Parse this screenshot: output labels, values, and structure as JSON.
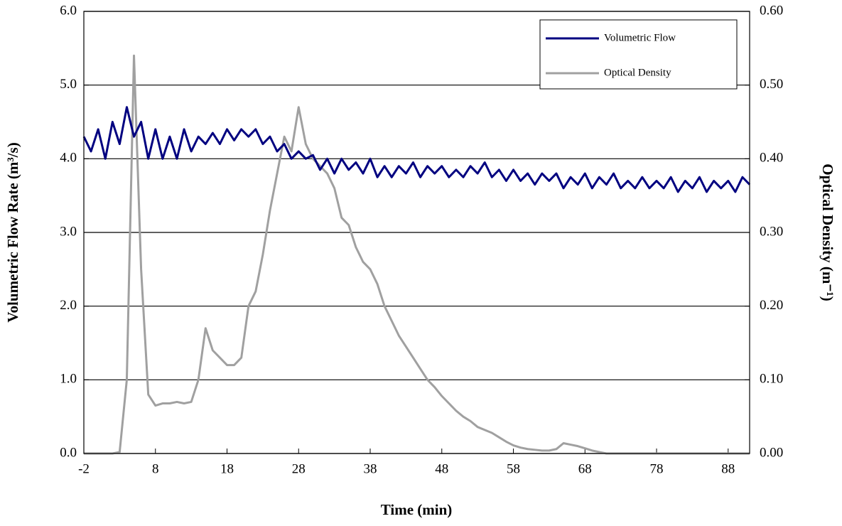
{
  "chart_data": {
    "type": "line",
    "x_label": "Time (min)",
    "y_label": "Volumetric Flow Rate (m³/s)",
    "y2_label": "Optical Density (m⁻¹)",
    "x": [
      -2,
      -1,
      0,
      1,
      2,
      3,
      4,
      5,
      6,
      7,
      8,
      9,
      10,
      11,
      12,
      13,
      14,
      15,
      16,
      17,
      18,
      19,
      20,
      21,
      22,
      23,
      24,
      25,
      26,
      27,
      28,
      29,
      30,
      31,
      32,
      33,
      34,
      35,
      36,
      37,
      38,
      39,
      40,
      41,
      42,
      43,
      44,
      45,
      46,
      47,
      48,
      49,
      50,
      51,
      52,
      53,
      54,
      55,
      56,
      57,
      58,
      59,
      60,
      61,
      62,
      63,
      64,
      65,
      66,
      67,
      68,
      69,
      70,
      71,
      72,
      73,
      74,
      75,
      76,
      77,
      78,
      79,
      80,
      81,
      82,
      83,
      84,
      85,
      86,
      87,
      88,
      89,
      90,
      91
    ],
    "series": [
      {
        "name": "Volumetric Flow",
        "color": "#000080",
        "axis": "y",
        "values": [
          4.3,
          4.1,
          4.4,
          4.0,
          4.5,
          4.2,
          4.7,
          4.3,
          4.5,
          4.0,
          4.4,
          4.0,
          4.3,
          4.0,
          4.4,
          4.1,
          4.3,
          4.2,
          4.35,
          4.2,
          4.4,
          4.25,
          4.4,
          4.3,
          4.4,
          4.2,
          4.3,
          4.1,
          4.2,
          4.0,
          4.1,
          4.0,
          4.05,
          3.85,
          4.0,
          3.8,
          4.0,
          3.85,
          3.95,
          3.8,
          4.0,
          3.75,
          3.9,
          3.75,
          3.9,
          3.8,
          3.95,
          3.75,
          3.9,
          3.8,
          3.9,
          3.75,
          3.85,
          3.75,
          3.9,
          3.8,
          3.95,
          3.75,
          3.85,
          3.7,
          3.85,
          3.7,
          3.8,
          3.65,
          3.8,
          3.7,
          3.8,
          3.6,
          3.75,
          3.65,
          3.8,
          3.6,
          3.75,
          3.65,
          3.8,
          3.6,
          3.7,
          3.6,
          3.75,
          3.6,
          3.7,
          3.6,
          3.75,
          3.55,
          3.7,
          3.6,
          3.75,
          3.55,
          3.7,
          3.6,
          3.7,
          3.55,
          3.75,
          3.65
        ]
      },
      {
        "name": "Optical Density",
        "color": "#a0a0a0",
        "axis": "y2",
        "values": [
          0,
          0,
          0,
          0,
          0,
          0.002,
          0.1,
          0.54,
          0.25,
          0.08,
          0.065,
          0.068,
          0.068,
          0.07,
          0.068,
          0.07,
          0.1,
          0.17,
          0.14,
          0.13,
          0.12,
          0.12,
          0.13,
          0.2,
          0.22,
          0.27,
          0.33,
          0.38,
          0.43,
          0.41,
          0.47,
          0.42,
          0.4,
          0.39,
          0.38,
          0.36,
          0.32,
          0.31,
          0.28,
          0.26,
          0.25,
          0.23,
          0.2,
          0.18,
          0.16,
          0.145,
          0.13,
          0.115,
          0.1,
          0.09,
          0.078,
          0.068,
          0.058,
          0.05,
          0.044,
          0.036,
          0.032,
          0.028,
          0.022,
          0.016,
          0.011,
          0.008,
          0.006,
          0.005,
          0.004,
          0.004,
          0.006,
          0.014,
          0.012,
          0.01,
          0.007,
          0.004,
          0.002,
          0,
          0,
          0,
          0,
          0,
          0,
          0,
          0,
          0,
          0,
          0,
          0,
          0,
          0,
          0,
          0,
          0,
          0,
          0,
          0,
          0
        ]
      }
    ],
    "xlim": [
      -2,
      91
    ],
    "xticks": [
      -2,
      8,
      18,
      28,
      38,
      48,
      58,
      68,
      78,
      88
    ],
    "ylim": [
      0,
      6
    ],
    "yticks": [
      {
        "value": 0,
        "label": "0.0"
      },
      {
        "value": 1,
        "label": "1.0"
      },
      {
        "value": 2,
        "label": "2.0"
      },
      {
        "value": 3,
        "label": "3.0"
      },
      {
        "value": 4,
        "label": "4.0"
      },
      {
        "value": 5,
        "label": "5.0"
      },
      {
        "value": 6,
        "label": "6.0"
      }
    ],
    "y2lim": [
      0,
      0.6
    ],
    "y2ticks": [
      {
        "value": 0,
        "label": "0.00"
      },
      {
        "value": 0.1,
        "label": "0.10"
      },
      {
        "value": 0.2,
        "label": "0.20"
      },
      {
        "value": 0.3,
        "label": "0.30"
      },
      {
        "value": 0.4,
        "label": "0.40"
      },
      {
        "value": 0.5,
        "label": "0.50"
      },
      {
        "value": 0.6,
        "label": "0.60"
      }
    ],
    "grid": true,
    "legend": "top-right"
  }
}
